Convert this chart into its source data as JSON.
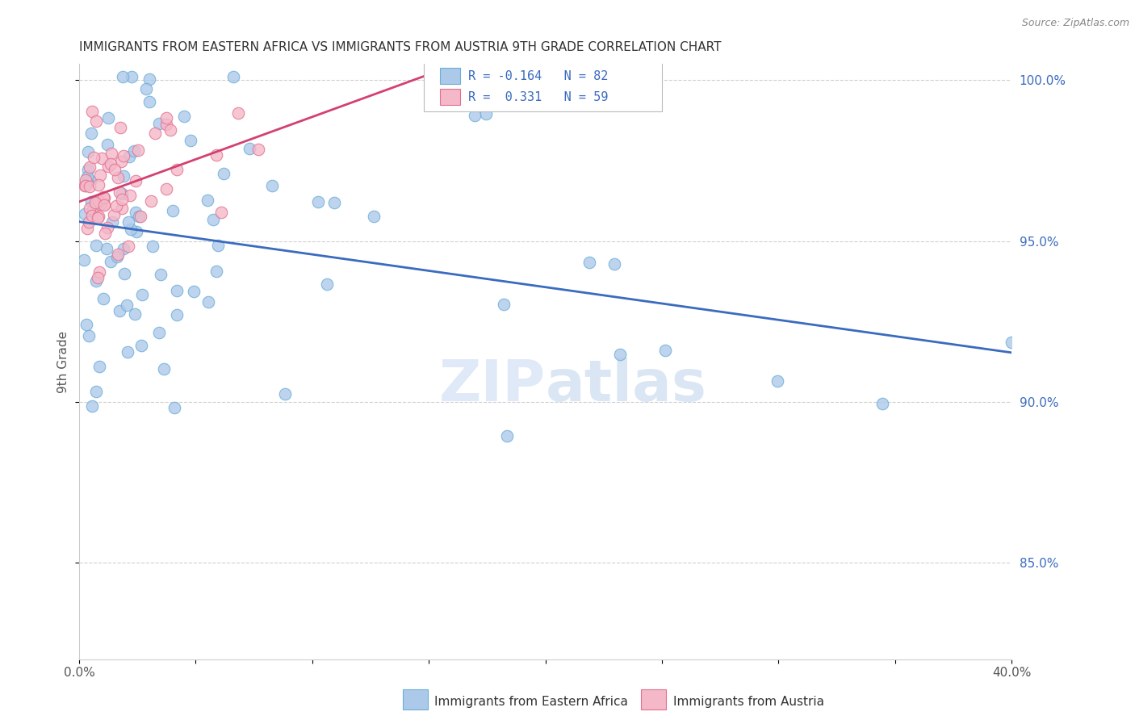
{
  "title": "IMMIGRANTS FROM EASTERN AFRICA VS IMMIGRANTS FROM AUSTRIA 9TH GRADE CORRELATION CHART",
  "source": "Source: ZipAtlas.com",
  "xlabel_blue": "Immigrants from Eastern Africa",
  "xlabel_pink": "Immigrants from Austria",
  "ylabel": "9th Grade",
  "xlim": [
    0.0,
    0.4
  ],
  "ylim": [
    0.82,
    1.005
  ],
  "yticks": [
    0.85,
    0.9,
    0.95,
    1.0
  ],
  "ytick_labels": [
    "85.0%",
    "90.0%",
    "95.0%",
    "100.0%"
  ],
  "R_blue": -0.164,
  "N_blue": 82,
  "R_pink": 0.331,
  "N_pink": 59,
  "blue_color": "#adc9ea",
  "blue_edge": "#6aaed6",
  "pink_color": "#f4b8c8",
  "pink_edge": "#e07090",
  "blue_line_color": "#3a6bbf",
  "pink_line_color": "#d44070",
  "watermark_zip": "ZIP",
  "watermark_atlas": "atlas",
  "legend_text_color": "#3a6bbf",
  "title_color": "#333333",
  "source_color": "#888888"
}
